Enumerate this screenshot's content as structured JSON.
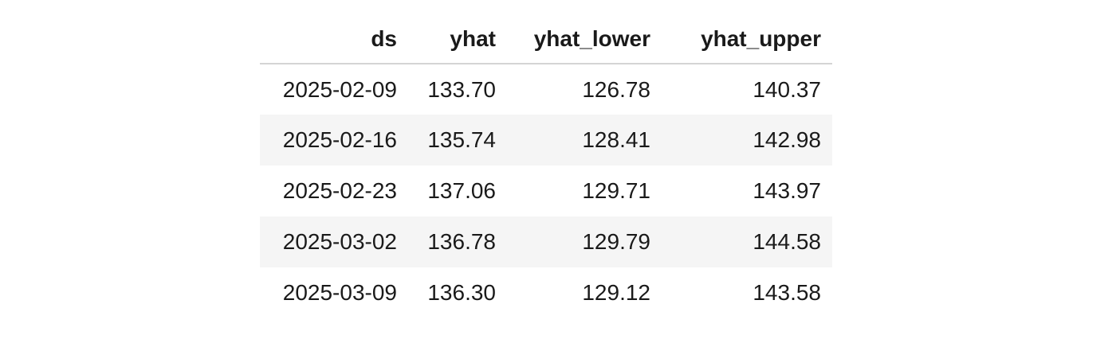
{
  "table": {
    "columns": [
      "ds",
      "yhat",
      "yhat_lower",
      "yhat_upper"
    ],
    "rows": [
      [
        "2025-02-09",
        "133.70",
        "126.78",
        "140.37"
      ],
      [
        "2025-02-16",
        "135.74",
        "128.41",
        "142.98"
      ],
      [
        "2025-02-23",
        "137.06",
        "129.71",
        "143.97"
      ],
      [
        "2025-03-02",
        "136.78",
        "129.79",
        "144.58"
      ],
      [
        "2025-03-09",
        "136.30",
        "129.12",
        "143.58"
      ]
    ]
  }
}
